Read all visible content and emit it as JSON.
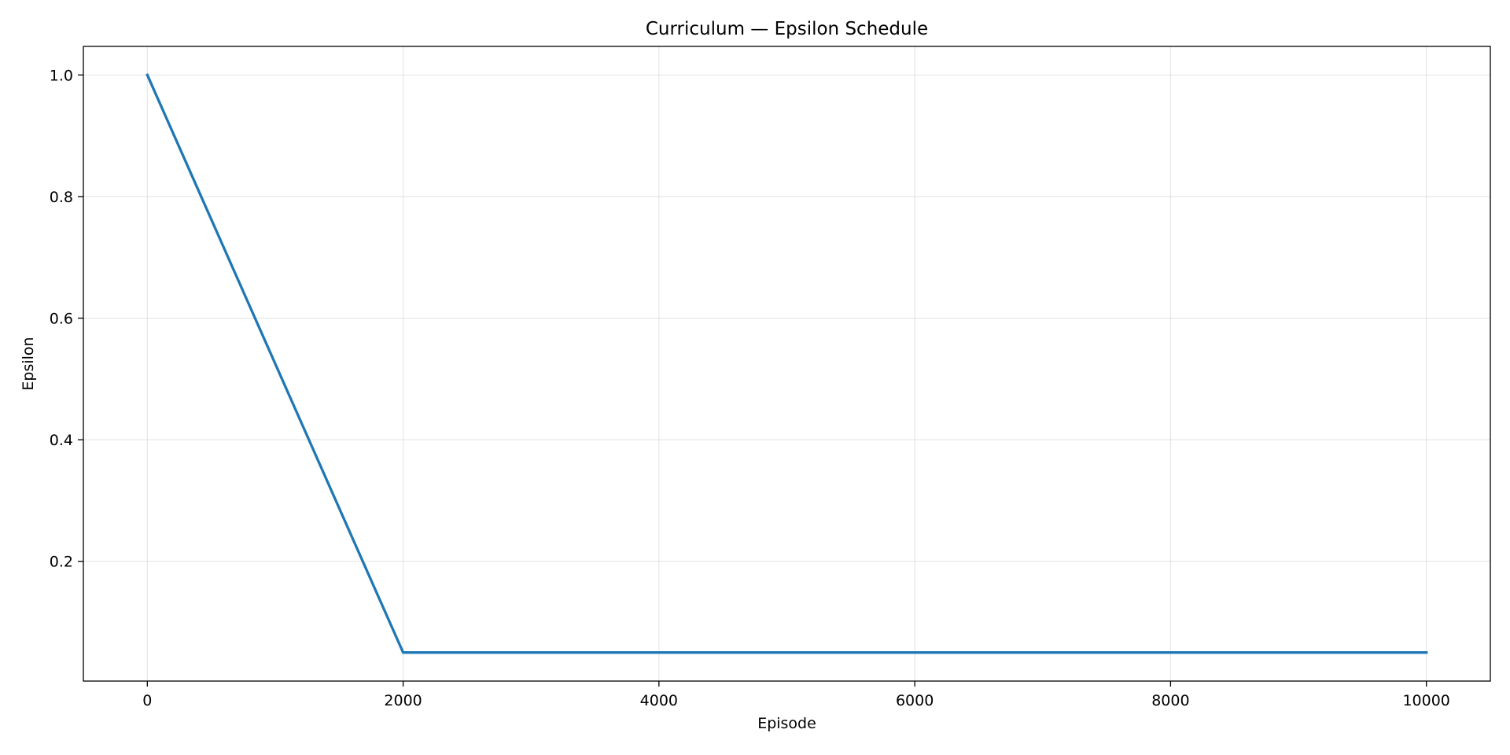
{
  "chart_data": {
    "type": "line",
    "title": "Curriculum — Epsilon Schedule",
    "xlabel": "Episode",
    "ylabel": "Epsilon",
    "xlim": [
      -500,
      10500
    ],
    "ylim": [
      0.003,
      1.047
    ],
    "x_ticks": [
      0,
      2000,
      4000,
      6000,
      8000,
      10000
    ],
    "x_tick_labels": [
      "0",
      "2000",
      "4000",
      "6000",
      "8000",
      "10000"
    ],
    "y_ticks": [
      0.2,
      0.4,
      0.6,
      0.8,
      1.0
    ],
    "y_tick_labels": [
      "0.2",
      "0.4",
      "0.6",
      "0.8",
      "1.0"
    ],
    "grid": true,
    "series": [
      {
        "color": "#1f77b4",
        "x": [
          0,
          2000,
          10000
        ],
        "y": [
          1.0,
          0.05,
          0.05
        ]
      }
    ]
  }
}
